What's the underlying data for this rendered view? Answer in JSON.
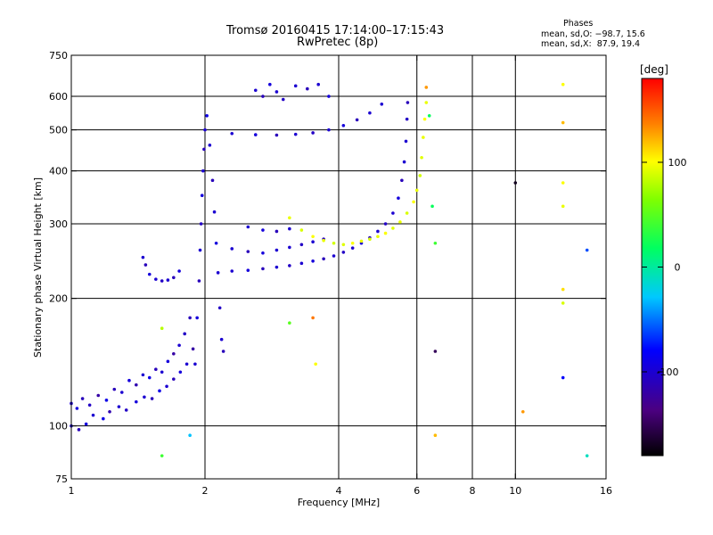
{
  "header": {
    "title": "Tromsø 20160415 17:14:00–17:15:43",
    "subtitle": "RwPretec (8p)"
  },
  "phases_box": {
    "title": "Phases",
    "line_o": "mean, sd,O: −98.7, 15.6",
    "line_x": "mean, sd,X:  87.9, 19.4"
  },
  "colorbar": {
    "label": "[deg]",
    "ticks": [
      {
        "value": 100,
        "label": "100"
      },
      {
        "value": 0,
        "label": "0"
      },
      {
        "value": -100,
        "label": "-100"
      }
    ],
    "range": [
      -180,
      180
    ]
  },
  "chart_data": {
    "type": "scatter",
    "title": "Tromsø 20160415 17:14:00–17:15:43",
    "subtitle": "RwPretec (8p)",
    "xlabel": "Frequency [MHz]",
    "ylabel": "Stationary phase Virtual Height [km]",
    "xscale": "log",
    "yscale": "log",
    "xlim": [
      1,
      16
    ],
    "ylim": [
      75,
      750
    ],
    "xticks": [
      {
        "value": 1,
        "label": "1"
      },
      {
        "value": 2,
        "label": "2"
      },
      {
        "value": 4,
        "label": "4"
      },
      {
        "value": 6,
        "label": "6"
      },
      {
        "value": 8,
        "label": "8"
      },
      {
        "value": 10,
        "label": "10"
      },
      {
        "value": 16,
        "label": "16"
      }
    ],
    "yticks": [
      {
        "value": 75,
        "label": "75"
      },
      {
        "value": 100,
        "label": "100"
      },
      {
        "value": 200,
        "label": "200"
      },
      {
        "value": 300,
        "label": "300"
      },
      {
        "value": 400,
        "label": "400"
      },
      {
        "value": 500,
        "label": "500"
      },
      {
        "value": 600,
        "label": "600"
      },
      {
        "value": 750,
        "label": "750"
      }
    ],
    "grid_x": [
      2,
      4,
      6,
      8,
      10
    ],
    "grid_y": [
      100,
      200,
      300,
      400,
      500,
      600
    ],
    "color_scale": "phase [deg], -180 to 180",
    "series": [
      {
        "points": [
          [
            1.0,
            113,
            -100
          ],
          [
            1.03,
            110,
            -95
          ],
          [
            1.06,
            116,
            -110
          ],
          [
            1.1,
            112,
            -105
          ],
          [
            1.15,
            118,
            -120
          ],
          [
            1.2,
            115,
            -90
          ],
          [
            1.25,
            122,
            -110
          ],
          [
            1.3,
            120,
            -100
          ],
          [
            1.35,
            128,
            -95
          ],
          [
            1.4,
            125,
            -115
          ],
          [
            1.45,
            132,
            -100
          ],
          [
            1.5,
            130,
            -90
          ],
          [
            1.55,
            136,
            -110
          ],
          [
            1.6,
            134,
            -100
          ],
          [
            1.65,
            142,
            -95
          ],
          [
            1.7,
            148,
            -120
          ],
          [
            1.75,
            155,
            -100
          ],
          [
            1.8,
            165,
            -105
          ],
          [
            1.85,
            180,
            -110
          ]
        ]
      },
      {
        "points": [
          [
            1.0,
            100,
            -100
          ],
          [
            1.04,
            98,
            -110
          ],
          [
            1.08,
            101,
            -95
          ],
          [
            1.12,
            106,
            -100
          ],
          [
            1.18,
            104,
            -90
          ],
          [
            1.22,
            108,
            -115
          ],
          [
            1.28,
            111,
            -100
          ],
          [
            1.33,
            109,
            -105
          ],
          [
            1.4,
            114,
            -95
          ],
          [
            1.46,
            117,
            -100
          ],
          [
            1.52,
            116,
            -110
          ],
          [
            1.58,
            121,
            -90
          ],
          [
            1.64,
            124,
            -100
          ],
          [
            1.7,
            129,
            -110
          ],
          [
            1.76,
            134,
            -95
          ],
          [
            1.82,
            140,
            -100
          ],
          [
            1.88,
            152,
            -120
          ]
        ]
      },
      {
        "points": [
          [
            1.9,
            140,
            -100
          ],
          [
            1.92,
            180,
            -95
          ],
          [
            1.94,
            220,
            -110
          ],
          [
            1.95,
            260,
            -100
          ],
          [
            1.96,
            300,
            -105
          ],
          [
            1.97,
            350,
            -95
          ],
          [
            1.98,
            400,
            -100
          ],
          [
            1.99,
            450,
            -110
          ],
          [
            2.0,
            500,
            -100
          ],
          [
            2.02,
            540,
            -90
          ],
          [
            2.05,
            460,
            -100
          ],
          [
            2.08,
            380,
            -110
          ],
          [
            2.1,
            320,
            -100
          ],
          [
            2.12,
            270,
            -95
          ],
          [
            2.14,
            230,
            -100
          ],
          [
            2.16,
            190,
            -105
          ],
          [
            2.18,
            160,
            -100
          ],
          [
            2.2,
            150,
            -110
          ]
        ]
      },
      {
        "points": [
          [
            1.45,
            250,
            -100
          ],
          [
            1.47,
            240,
            -110
          ],
          [
            1.5,
            228,
            -95
          ],
          [
            1.55,
            222,
            -100
          ],
          [
            1.6,
            220,
            -105
          ],
          [
            1.65,
            221,
            -100
          ],
          [
            1.7,
            224,
            -110
          ],
          [
            1.75,
            232,
            -95
          ]
        ]
      },
      {
        "points": [
          [
            2.3,
            232,
            -100
          ],
          [
            2.5,
            233,
            -95
          ],
          [
            2.7,
            235,
            -110
          ],
          [
            2.9,
            237,
            -100
          ],
          [
            3.1,
            239,
            -105
          ],
          [
            3.3,
            242,
            -100
          ],
          [
            3.5,
            245,
            -95
          ],
          [
            3.7,
            248,
            -110
          ],
          [
            3.9,
            252,
            -100
          ],
          [
            4.1,
            257,
            -105
          ],
          [
            4.3,
            263,
            -100
          ],
          [
            4.5,
            270,
            -95
          ],
          [
            4.7,
            278,
            -110
          ],
          [
            4.9,
            288,
            -100
          ],
          [
            5.1,
            300,
            -105
          ],
          [
            5.3,
            318,
            -100
          ],
          [
            5.45,
            345,
            -95
          ],
          [
            5.55,
            380,
            -110
          ],
          [
            5.62,
            420,
            -100
          ],
          [
            5.67,
            470,
            -100
          ],
          [
            5.7,
            530,
            -105
          ],
          [
            5.72,
            580,
            -110
          ]
        ]
      },
      {
        "points": [
          [
            2.3,
            262,
            -100
          ],
          [
            2.5,
            258,
            -110
          ],
          [
            2.7,
            256,
            -95
          ],
          [
            2.9,
            260,
            -100
          ],
          [
            3.1,
            264,
            -100
          ],
          [
            3.3,
            268,
            -105
          ],
          [
            3.5,
            272,
            -100
          ],
          [
            3.7,
            276,
            -110
          ]
        ]
      },
      {
        "points": [
          [
            2.5,
            295,
            -100
          ],
          [
            2.7,
            290,
            -95
          ],
          [
            2.9,
            288,
            -110
          ],
          [
            3.1,
            292,
            -100
          ]
        ]
      },
      {
        "points": [
          [
            2.3,
            490,
            -100
          ],
          [
            2.6,
            487,
            -95
          ],
          [
            2.9,
            486,
            -110
          ],
          [
            3.2,
            488,
            -100
          ],
          [
            3.5,
            492,
            -105
          ],
          [
            3.8,
            500,
            -100
          ],
          [
            4.1,
            512,
            -95
          ],
          [
            4.4,
            528,
            -110
          ],
          [
            4.7,
            548,
            -100
          ],
          [
            5.0,
            575,
            -100
          ]
        ]
      },
      {
        "points": [
          [
            2.6,
            620,
            -100
          ],
          [
            2.7,
            600,
            -110
          ],
          [
            2.8,
            640,
            -95
          ],
          [
            2.9,
            615,
            -100
          ],
          [
            3.0,
            590,
            -105
          ],
          [
            3.2,
            635,
            -100
          ],
          [
            3.4,
            625,
            -110
          ],
          [
            3.6,
            640,
            -100
          ],
          [
            3.8,
            600,
            -95
          ]
        ]
      },
      {
        "points": [
          [
            3.1,
            310,
            95
          ],
          [
            3.3,
            290,
            90
          ],
          [
            3.5,
            280,
            100
          ],
          [
            3.7,
            274,
            95
          ],
          [
            3.9,
            270,
            88
          ],
          [
            4.1,
            268,
            92
          ],
          [
            4.3,
            270,
            100
          ],
          [
            4.5,
            273,
            95
          ],
          [
            4.7,
            276,
            90
          ],
          [
            4.9,
            280,
            95
          ],
          [
            5.1,
            285,
            100
          ],
          [
            5.3,
            293,
            92
          ],
          [
            5.5,
            303,
            95
          ],
          [
            5.7,
            318,
            90
          ],
          [
            5.9,
            338,
            100
          ],
          [
            6.0,
            360,
            95
          ],
          [
            6.1,
            390,
            88
          ],
          [
            6.15,
            430,
            92
          ],
          [
            6.2,
            480,
            95
          ],
          [
            6.25,
            530,
            100
          ],
          [
            6.3,
            580,
            95
          ]
        ]
      },
      {
        "points": [
          [
            3.1,
            175,
            50
          ],
          [
            3.5,
            180,
            140
          ],
          [
            3.55,
            140,
            100
          ],
          [
            6.6,
            270,
            40
          ],
          [
            6.5,
            330,
            20
          ],
          [
            6.4,
            540,
            20
          ],
          [
            6.3,
            630,
            130
          ],
          [
            10.4,
            108,
            130
          ],
          [
            12.8,
            640,
            100
          ],
          [
            12.8,
            520,
            120
          ],
          [
            12.8,
            375,
            100
          ],
          [
            12.8,
            330,
            95
          ],
          [
            12.8,
            210,
            110
          ],
          [
            12.8,
            195,
            90
          ],
          [
            12.8,
            130,
            -80
          ],
          [
            14.5,
            260,
            -60
          ],
          [
            14.5,
            85,
            -10
          ],
          [
            10.0,
            375,
            -170
          ],
          [
            6.6,
            150,
            -150
          ],
          [
            6.6,
            95,
            120
          ],
          [
            1.85,
            95,
            -30
          ],
          [
            1.6,
            170,
            80
          ],
          [
            1.6,
            85,
            40
          ]
        ]
      }
    ]
  }
}
